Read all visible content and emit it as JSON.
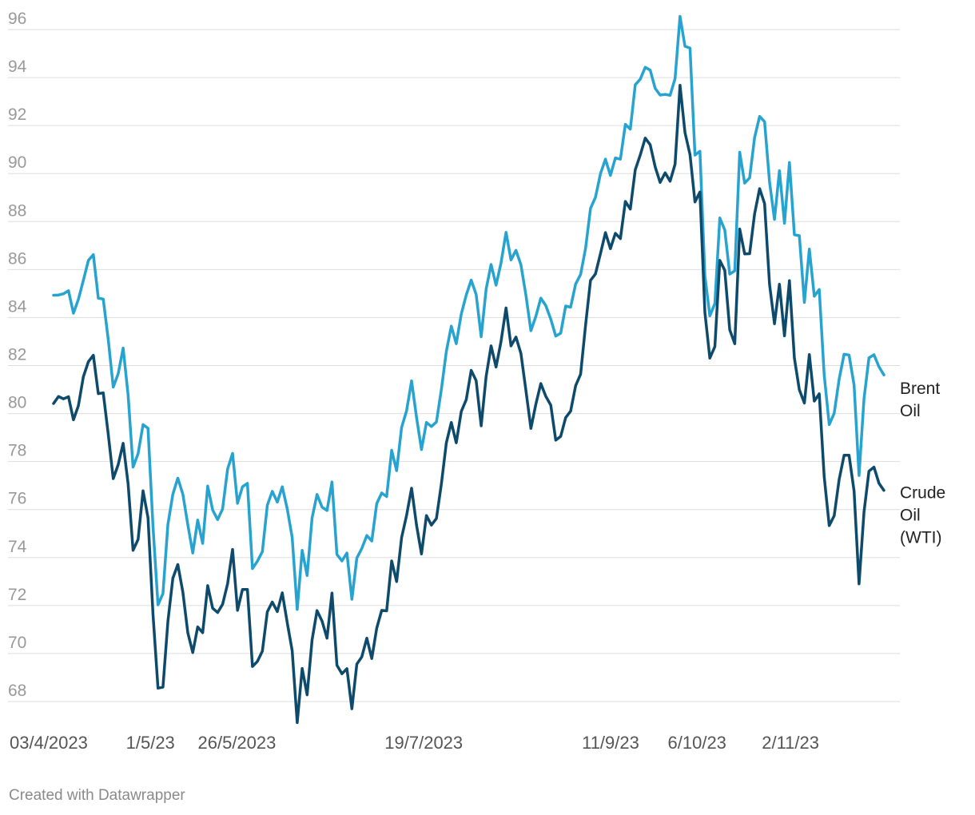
{
  "chart_data": {
    "type": "line",
    "title": "",
    "xlabel": "",
    "ylabel": "",
    "ylim": [
      67,
      97
    ],
    "yticks": [
      68,
      70,
      72,
      74,
      76,
      78,
      80,
      82,
      84,
      86,
      88,
      90,
      92,
      94,
      96
    ],
    "x_tick_labels": [
      {
        "label": "03/4/2023",
        "date": "2023-04-03"
      },
      {
        "label": "1/5/23",
        "date": "2023-05-01"
      },
      {
        "label": "26/5/2023",
        "date": "2023-05-26"
      },
      {
        "label": "19/7/2023",
        "date": "2023-07-19"
      },
      {
        "label": "11/9/23",
        "date": "2023-09-11"
      },
      {
        "label": "6/10/23",
        "date": "2023-10-06"
      },
      {
        "label": "2/11/23",
        "date": "2023-11-02"
      }
    ],
    "xrange": [
      "2023-04-03",
      "2023-11-29"
    ],
    "grid": true,
    "legend": "direct labels at line ends",
    "colors": {
      "brent": "#27a3d0",
      "wti": "#0d4a6b",
      "grid": "#dddddd"
    },
    "series": [
      {
        "name": "Brent Oil",
        "label_lines": [
          "Brent",
          "Oil"
        ],
        "color": "#27a3d0",
        "values": [
          84.93,
          84.94,
          84.99,
          85.12,
          84.18,
          84.76,
          85.55,
          86.38,
          86.62,
          84.81,
          84.77,
          83.1,
          81.1,
          81.66,
          82.73,
          80.77,
          77.77,
          78.33,
          79.54,
          79.39,
          75.32,
          72.03,
          72.5,
          75.38,
          76.64,
          77.31,
          76.64,
          75.37,
          74.19,
          75.56,
          74.59,
          76.98,
          75.98,
          75.58,
          76.02,
          77.69,
          78.34,
          76.26,
          76.95,
          77.09,
          73.54,
          73.85,
          74.25,
          76.18,
          76.76,
          76.31,
          76.95,
          76.03,
          74.84,
          71.84,
          74.3,
          73.25,
          75.65,
          76.63,
          76.1,
          75.96,
          77.15,
          74.13,
          73.86,
          74.19,
          72.26,
          73.98,
          74.38,
          74.92,
          74.69,
          76.25,
          76.69,
          76.54,
          78.47,
          77.62,
          79.42,
          80.11,
          81.36,
          79.84,
          78.5,
          79.63,
          79.46,
          79.65,
          81.01,
          82.59,
          83.64,
          82.91,
          84.15,
          84.94,
          85.56,
          84.96,
          83.2,
          85.19,
          86.21,
          85.35,
          86.27,
          87.55,
          86.4,
          86.8,
          86.2,
          84.95,
          83.45,
          84.05,
          84.81,
          84.5,
          83.93,
          83.23,
          83.35,
          84.48,
          84.43,
          85.4,
          85.8,
          86.88,
          88.55,
          89.01,
          90.0,
          90.6,
          89.92,
          90.65,
          90.6,
          92.05,
          91.85,
          93.7,
          93.93,
          94.43,
          94.31,
          93.55,
          93.27,
          93.3,
          93.26,
          93.96,
          96.55,
          95.3,
          95.23,
          90.77,
          90.93,
          85.74,
          84.07,
          84.58,
          88.15,
          87.65,
          85.81,
          85.95,
          90.89,
          89.6,
          89.82,
          91.5,
          92.38,
          92.16,
          89.65,
          88.09,
          90.12,
          87.93,
          90.46,
          87.45,
          87.41,
          84.63,
          86.85,
          84.89,
          85.17,
          81.61,
          79.54,
          80.01,
          81.43,
          82.47,
          82.44,
          81.19,
          77.42,
          80.61,
          82.32,
          82.45,
          81.95,
          81.61
        ]
      },
      {
        "name": "Crude Oil (WTI)",
        "label_lines": [
          "Crude",
          "Oil",
          "(WTI)"
        ],
        "color": "#0d4a6b",
        "values": [
          80.42,
          80.71,
          80.61,
          80.7,
          79.74,
          80.33,
          81.53,
          82.16,
          82.43,
          80.83,
          80.86,
          79.15,
          77.29,
          77.87,
          78.76,
          77.07,
          74.3,
          74.76,
          76.78,
          75.66,
          71.66,
          68.56,
          68.6,
          71.34,
          73.14,
          73.71,
          72.56,
          70.87,
          70.04,
          71.11,
          70.87,
          72.83,
          71.89,
          71.71,
          72.05,
          72.91,
          74.34,
          71.8,
          72.67,
          72.67,
          69.46,
          69.67,
          70.1,
          71.74,
          72.15,
          71.75,
          72.53,
          71.29,
          70.12,
          67.12,
          69.38,
          68.28,
          70.57,
          71.79,
          71.35,
          70.64,
          72.52,
          69.51,
          69.16,
          69.37,
          67.7,
          69.56,
          69.86,
          70.64,
          69.79,
          71.06,
          71.8,
          71.78,
          73.86,
          73.0,
          74.83,
          75.75,
          76.89,
          75.35,
          74.15,
          75.75,
          75.35,
          75.63,
          77.07,
          78.78,
          79.63,
          78.78,
          80.09,
          80.58,
          81.8,
          81.37,
          79.49,
          81.55,
          82.82,
          81.94,
          83.0,
          84.4,
          82.82,
          83.19,
          82.51,
          80.98,
          79.38,
          80.39,
          81.25,
          80.72,
          80.35,
          78.89,
          79.05,
          79.83,
          80.1,
          81.16,
          81.64,
          83.68,
          85.55,
          85.82,
          86.67,
          87.54,
          86.87,
          87.51,
          87.29,
          88.84,
          88.52,
          90.16,
          90.77,
          91.48,
          91.2,
          90.28,
          89.63,
          90.03,
          89.68,
          90.39,
          93.68,
          91.71,
          90.79,
          88.82,
          89.23,
          84.22,
          82.31,
          82.79,
          86.38,
          85.97,
          83.49,
          82.91,
          87.69,
          86.65,
          86.66,
          88.32,
          89.37,
          88.75,
          85.39,
          83.74,
          85.39,
          83.24,
          85.54,
          82.31,
          80.99,
          80.44,
          82.46,
          80.52,
          80.82,
          77.37,
          75.33,
          75.74,
          77.25,
          78.26,
          78.26,
          76.77,
          72.9,
          75.89,
          77.6,
          77.77,
          77.1,
          76.8
        ]
      }
    ]
  },
  "footer": {
    "credit": "Created with Datawrapper"
  }
}
